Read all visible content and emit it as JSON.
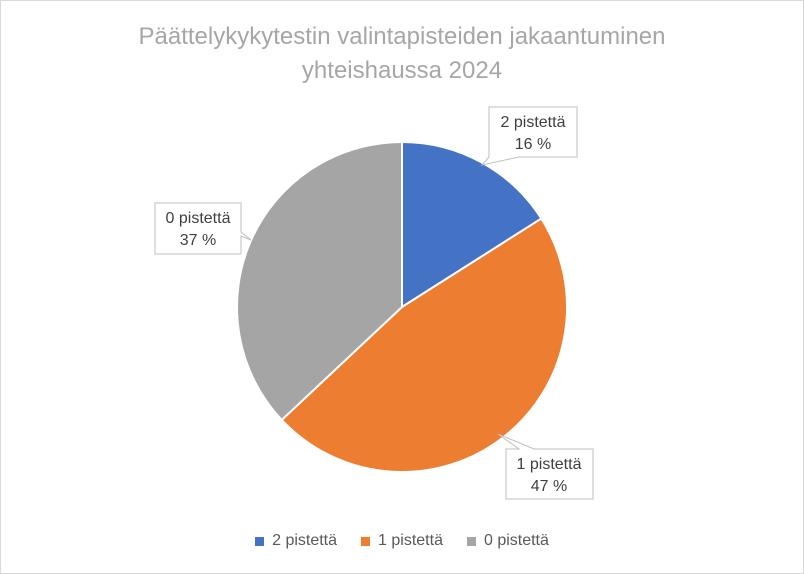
{
  "chart_data": {
    "type": "pie",
    "title": "Päättelykykytestin valintapisteiden jakaantuminen yhteishaussa 2024",
    "title_lines": [
      "Päättelykykytestin valintapisteiden jakaantuminen",
      "yhteishaussa 2024"
    ],
    "categories": [
      "2 pistettä",
      "1 pistettä",
      "0 pistettä"
    ],
    "values": [
      16,
      47,
      37
    ],
    "value_labels": [
      "16 %",
      "47 %",
      "37 %"
    ],
    "colors": [
      "#4472c4",
      "#ed7d31",
      "#a5a5a5"
    ],
    "legend_position": "bottom",
    "data_labels": "callout"
  }
}
